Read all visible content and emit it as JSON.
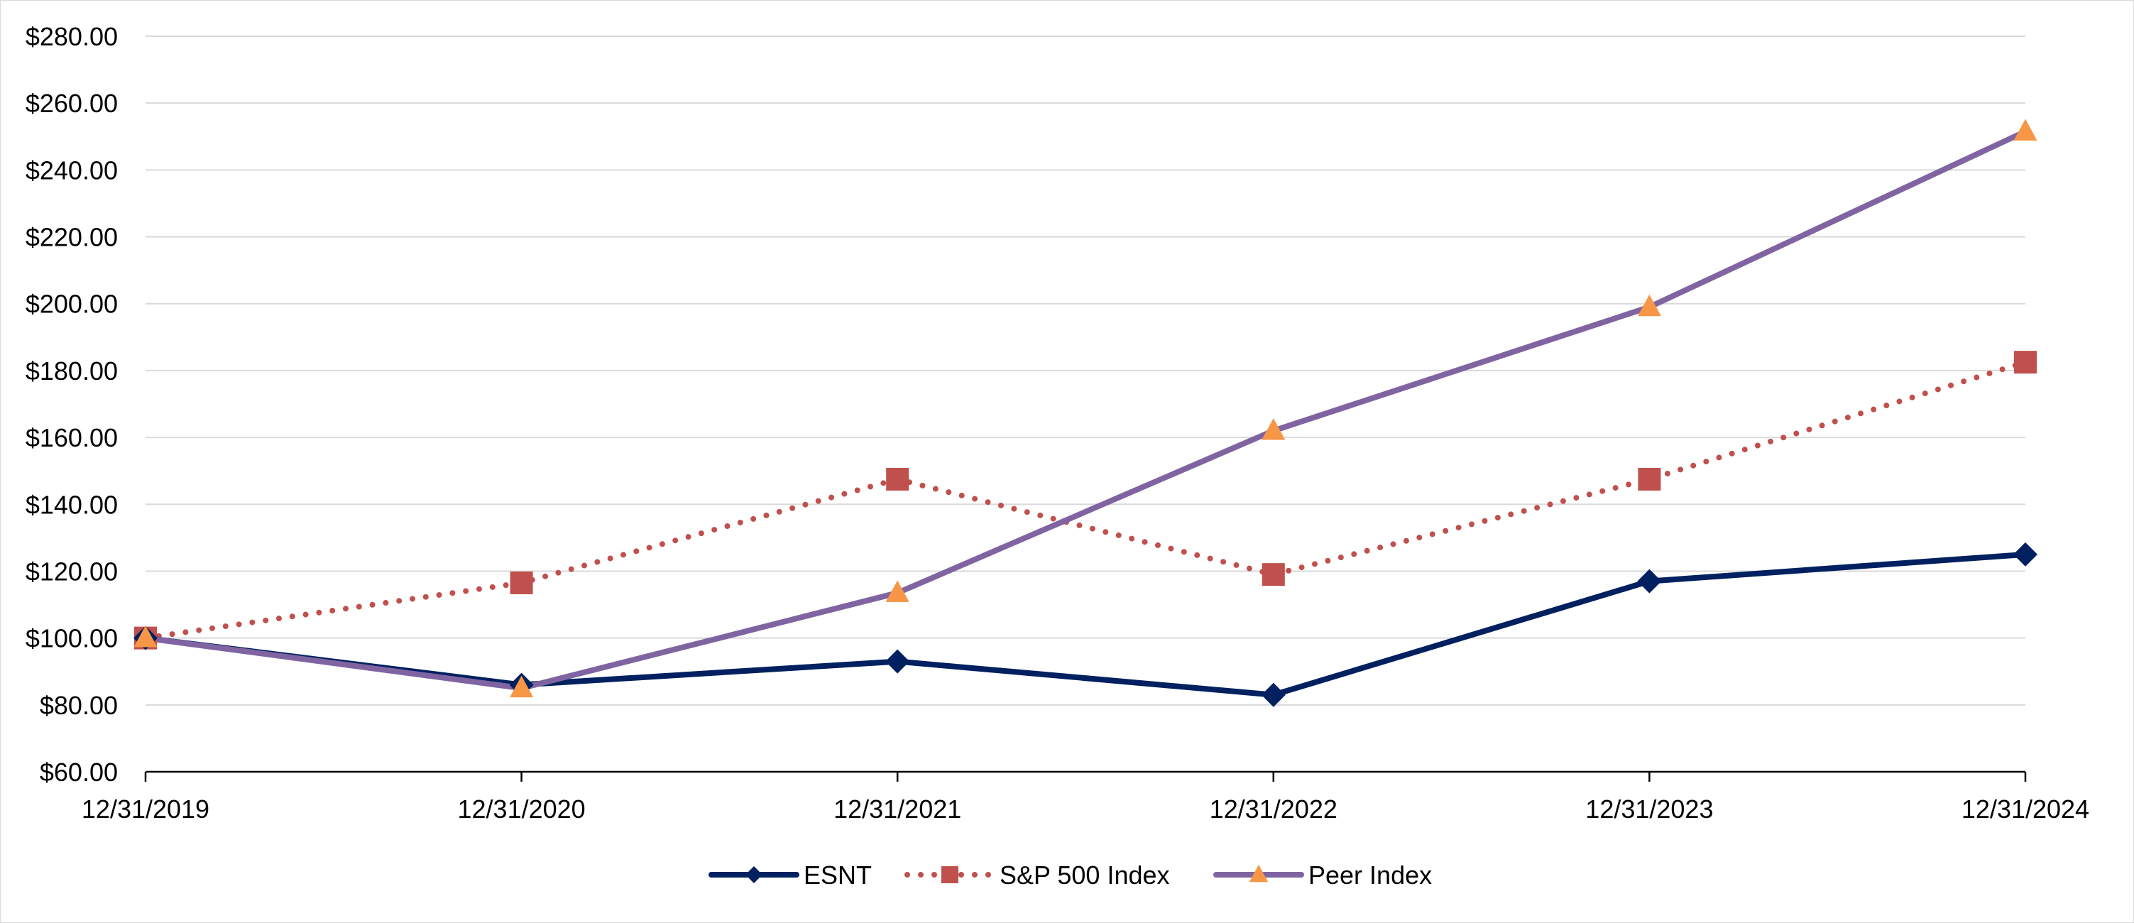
{
  "chart_data": {
    "type": "line",
    "title": "",
    "xlabel": "",
    "ylabel": "",
    "categories": [
      "12/31/2019",
      "12/31/2020",
      "12/31/2021",
      "12/31/2022",
      "12/31/2023",
      "12/31/2024"
    ],
    "ylim": [
      60,
      280
    ],
    "yticks": [
      60,
      80,
      100,
      120,
      140,
      160,
      180,
      200,
      220,
      240,
      260,
      280
    ],
    "ytick_labels": [
      "$60.00",
      "$80.00",
      "$100.00",
      "$120.00",
      "$140.00",
      "$160.00",
      "$180.00",
      "$200.00",
      "$220.00",
      "$240.00",
      "$260.00",
      "$280.00"
    ],
    "grid": "horizontal",
    "legend": "bottom-center",
    "series": [
      {
        "name": "ESNT",
        "values": [
          100,
          86,
          93,
          83,
          117,
          125
        ],
        "color": "#002060",
        "marker": "diamond",
        "line_style": "solid"
      },
      {
        "name": "S&P 500 Index",
        "values": [
          100,
          116.5,
          147.5,
          119,
          147.5,
          182.5
        ],
        "color": "#c0504d",
        "marker": "square",
        "line_style": "dotted"
      },
      {
        "name": "Peer Index",
        "values": [
          100,
          85,
          113.5,
          162,
          199,
          251.5
        ],
        "color": "#8064a2",
        "marker": "triangle",
        "marker_color": "#f79646",
        "line_style": "solid"
      }
    ]
  }
}
